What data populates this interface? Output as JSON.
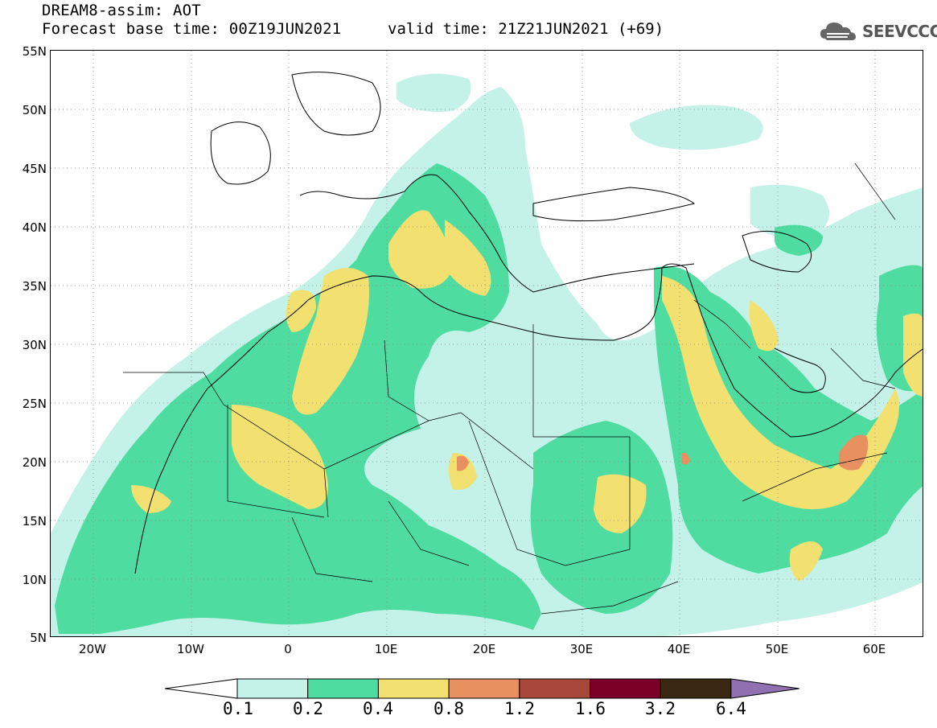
{
  "header": {
    "line1": "DREAM8-assim: AOT",
    "line2": "Forecast base time: 00Z19JUN2021",
    "valid": "valid time: 21Z21JUN2021 (+69)"
  },
  "logo": {
    "text": "SEEVCCC",
    "icon": "cloud-icon"
  },
  "axes": {
    "lat_labels": [
      "55N",
      "50N",
      "45N",
      "40N",
      "35N",
      "30N",
      "25N",
      "20N",
      "15N",
      "10N",
      "5N"
    ],
    "lon_labels": [
      "20W",
      "10W",
      "0",
      "10E",
      "20E",
      "30E",
      "40E",
      "50E",
      "60E"
    ]
  },
  "colorbar": {
    "levels": [
      "0.1",
      "0.2",
      "0.4",
      "0.8",
      "1.2",
      "1.6",
      "3.2",
      "6.4"
    ],
    "colors": [
      "#ffffff",
      "#c4f2e8",
      "#4edca0",
      "#f2e070",
      "#e89060",
      "#a8483a",
      "#7a0028",
      "#3a2814",
      "#9070b0"
    ]
  },
  "colors": {
    "c1": "#c4f2e8",
    "c2": "#4edca0",
    "c3": "#f2e070",
    "c4": "#e89060"
  }
}
